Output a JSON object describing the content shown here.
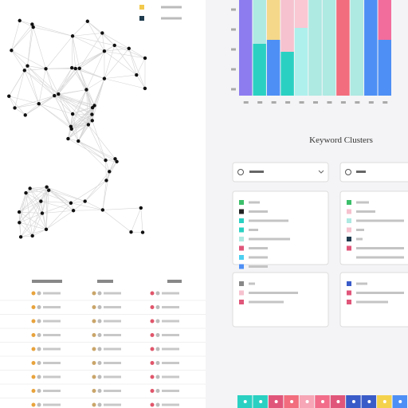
{
  "section_title": "Keyword Clusters"
}
